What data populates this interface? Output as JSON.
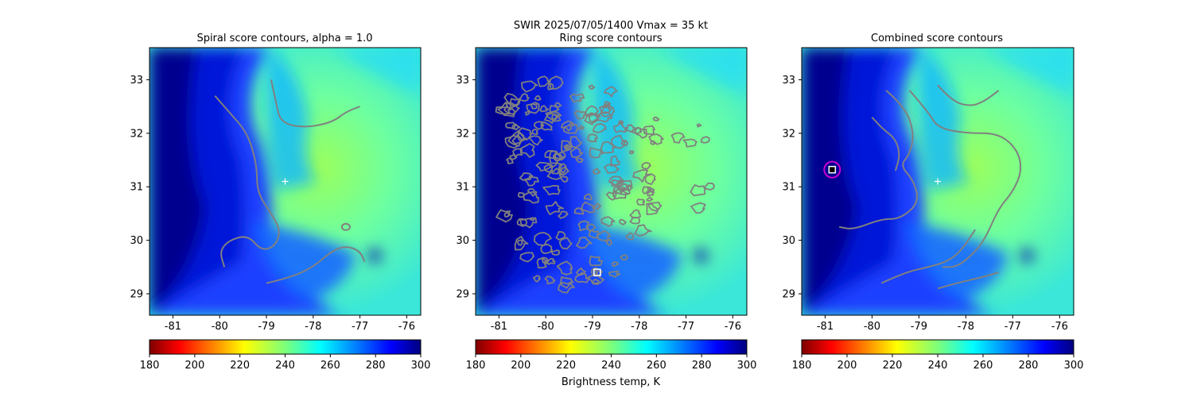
{
  "figure": {
    "suptitle": "SWIR  2025/07/05/1400    Vmax = 35 kt",
    "colorbar_label": "Brightness temp, K"
  },
  "colors": {
    "contour": "#808080",
    "center_marker": "#ffffff",
    "best_marker_circle": "#cc00cc",
    "background_cloud_free": "#7dff7a",
    "cold_cloud": "#00008f"
  },
  "chart_data": [
    {
      "type": "heatmap",
      "title": "Spiral score contours, alpha =  1.0",
      "colormap": "jet_r",
      "xlim": [
        -81.5,
        -75.7
      ],
      "ylim": [
        28.6,
        33.6
      ],
      "xticks": [
        "-81",
        "-80",
        "-79",
        "-78",
        "-77",
        "-76"
      ],
      "xtick_values": [
        -81,
        -80,
        -79,
        -78,
        -77,
        -76
      ],
      "yticks": [
        "29",
        "30",
        "31",
        "32",
        "33"
      ],
      "ytick_values": [
        29,
        30,
        31,
        32,
        33
      ],
      "colorbar": {
        "range": [
          180,
          300
        ],
        "ticks": [
          "180",
          "200",
          "220",
          "240",
          "260",
          "280",
          "300"
        ]
      },
      "center_marker": {
        "lon": -78.6,
        "lat": 31.1
      },
      "contours": [
        [
          [
            -80.1,
            32.7
          ],
          [
            -79.8,
            32.4
          ],
          [
            -79.4,
            32.0
          ],
          [
            -79.2,
            31.4
          ],
          [
            -79.2,
            30.9
          ],
          [
            -78.9,
            30.5
          ],
          [
            -78.7,
            30.2
          ],
          [
            -78.8,
            29.9
          ],
          [
            -79.1,
            29.8
          ],
          [
            -79.4,
            30.1
          ],
          [
            -79.8,
            30.0
          ],
          [
            -80.0,
            29.8
          ],
          [
            -79.9,
            29.5
          ]
        ],
        [
          [
            -78.9,
            33.0
          ],
          [
            -78.8,
            32.6
          ],
          [
            -78.7,
            32.2
          ],
          [
            -78.2,
            32.1
          ],
          [
            -77.6,
            32.2
          ],
          [
            -77.3,
            32.4
          ],
          [
            -77.0,
            32.5
          ]
        ],
        [
          [
            -79.0,
            29.2
          ],
          [
            -78.5,
            29.3
          ],
          [
            -78.0,
            29.5
          ],
          [
            -77.6,
            29.8
          ],
          [
            -77.3,
            29.9
          ],
          [
            -77.0,
            29.8
          ],
          [
            -76.9,
            29.6
          ]
        ]
      ],
      "contour_loops": [
        [
          -77.3,
          30.25
        ]
      ]
    },
    {
      "type": "heatmap",
      "title": "Ring score contours",
      "colormap": "jet_r",
      "xlim": [
        -81.5,
        -75.7
      ],
      "ylim": [
        28.6,
        33.6
      ],
      "xticks": [
        "-81",
        "-80",
        "-79",
        "-78",
        "-77",
        "-76"
      ],
      "xtick_values": [
        -81,
        -80,
        -79,
        -78,
        -77,
        -76
      ],
      "yticks": [
        "29",
        "30",
        "31",
        "32",
        "33"
      ],
      "ytick_values": [
        29,
        30,
        31,
        32,
        33
      ],
      "colorbar": {
        "range": [
          180,
          300
        ],
        "ticks": [
          "180",
          "200",
          "220",
          "240",
          "260",
          "280",
          "300"
        ]
      },
      "best_marker": {
        "lon": -78.9,
        "lat": 29.4
      },
      "ring_region": {
        "lon_range": [
          -80.9,
          -76.3
        ],
        "lat_range": [
          29.1,
          33.1
        ]
      }
    },
    {
      "type": "heatmap",
      "title": "Combined score contours",
      "colormap": "jet_r",
      "xlim": [
        -81.5,
        -75.7
      ],
      "ylim": [
        28.6,
        33.6
      ],
      "xticks": [
        "-81",
        "-80",
        "-79",
        "-78",
        "-77",
        "-76"
      ],
      "xtick_values": [
        -81,
        -80,
        -79,
        -78,
        -77,
        -76
      ],
      "yticks": [
        "29",
        "30",
        "31",
        "32",
        "33"
      ],
      "ytick_values": [
        29,
        30,
        31,
        32,
        33
      ],
      "colorbar": {
        "range": [
          180,
          300
        ],
        "ticks": [
          "180",
          "200",
          "220",
          "240",
          "260",
          "280",
          "300"
        ]
      },
      "center_marker": {
        "lon": -78.6,
        "lat": 31.1
      },
      "best_marker": {
        "lon": -80.85,
        "lat": 31.32
      },
      "contours": [
        [
          [
            -79.2,
            32.8
          ],
          [
            -78.8,
            32.4
          ],
          [
            -78.6,
            32.1
          ],
          [
            -78.0,
            32.0
          ],
          [
            -77.3,
            32.0
          ],
          [
            -76.9,
            31.7
          ],
          [
            -76.8,
            31.3
          ],
          [
            -77.0,
            30.9
          ],
          [
            -77.3,
            30.6
          ],
          [
            -77.6,
            30.0
          ],
          [
            -77.9,
            29.7
          ],
          [
            -78.2,
            29.5
          ],
          [
            -78.5,
            29.5
          ]
        ],
        [
          [
            -79.7,
            32.8
          ],
          [
            -79.3,
            32.5
          ],
          [
            -79.1,
            32.0
          ],
          [
            -79.2,
            31.6
          ],
          [
            -79.4,
            31.4
          ],
          [
            -79.1,
            31.1
          ],
          [
            -79.0,
            30.7
          ],
          [
            -79.4,
            30.4
          ],
          [
            -79.8,
            30.4
          ],
          [
            -80.4,
            30.2
          ],
          [
            -80.7,
            30.25
          ]
        ],
        [
          [
            -80.0,
            32.3
          ],
          [
            -79.8,
            32.1
          ],
          [
            -79.5,
            31.9
          ],
          [
            -79.4,
            31.6
          ],
          [
            -79.5,
            31.3
          ]
        ],
        [
          [
            -78.6,
            32.9
          ],
          [
            -78.3,
            32.6
          ],
          [
            -77.9,
            32.5
          ],
          [
            -77.6,
            32.6
          ],
          [
            -77.3,
            32.8
          ]
        ],
        [
          [
            -79.8,
            29.2
          ],
          [
            -79.3,
            29.4
          ],
          [
            -78.8,
            29.5
          ],
          [
            -78.4,
            29.6
          ],
          [
            -78.1,
            29.8
          ],
          [
            -77.8,
            30.2
          ]
        ],
        [
          [
            -78.6,
            29.1
          ],
          [
            -78.2,
            29.2
          ],
          [
            -77.7,
            29.3
          ],
          [
            -77.3,
            29.4
          ]
        ]
      ]
    }
  ]
}
